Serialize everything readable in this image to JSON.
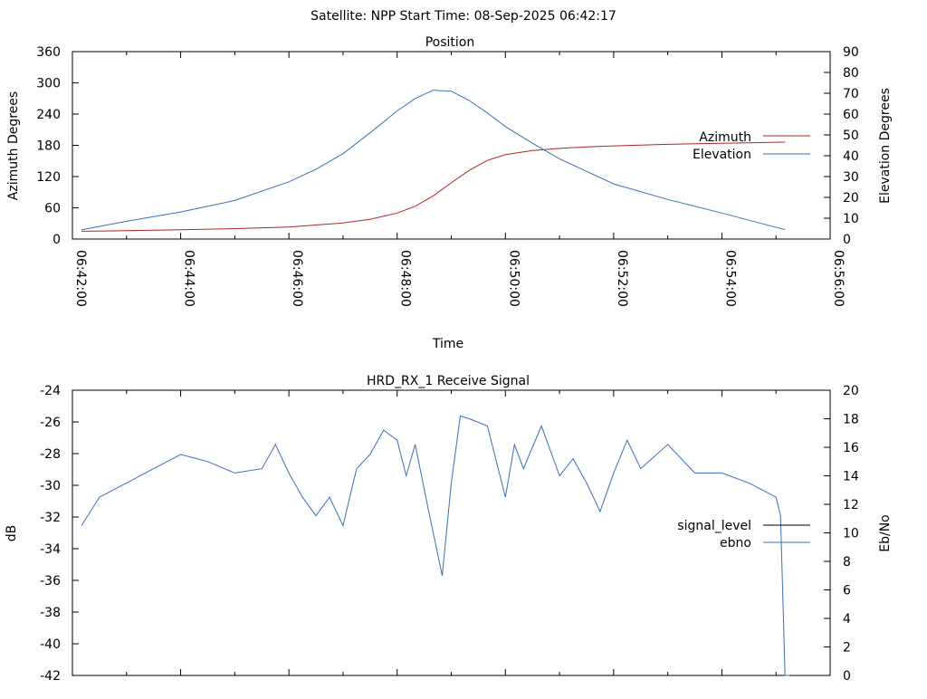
{
  "header": {
    "title": "Satellite: NPP    Start Time: 08-Sep-2025 06:42:17"
  },
  "chart_data": [
    {
      "type": "line",
      "title": "Position",
      "xlabel": "Time",
      "ylabel": "Azimuth Degrees",
      "y2label": "Elevation Degrees",
      "xlim": [
        "06:42:00",
        "06:56:00"
      ],
      "ylim": [
        0,
        360
      ],
      "y2lim": [
        0,
        90
      ],
      "grid": false,
      "legend": "right",
      "x_ticks": [
        "06:42:00",
        "06:44:00",
        "06:46:00",
        "06:48:00",
        "06:50:00",
        "06:52:00",
        "06:54:00",
        "06:56:00"
      ],
      "y_ticks": [
        "0",
        "60",
        "120",
        "180",
        "240",
        "300",
        "360"
      ],
      "y2_ticks": [
        "0",
        "10",
        "20",
        "30",
        "40",
        "50",
        "60",
        "70",
        "80",
        "90"
      ],
      "series": [
        {
          "name": "Azimuth",
          "axis": "y",
          "color": "#b22222",
          "x": [
            "06:42:10",
            "06:43:00",
            "06:44:00",
            "06:45:00",
            "06:46:00",
            "06:46:30",
            "06:47:00",
            "06:47:30",
            "06:48:00",
            "06:48:20",
            "06:48:40",
            "06:49:00",
            "06:49:20",
            "06:49:40",
            "06:50:00",
            "06:50:30",
            "06:51:00",
            "06:51:30",
            "06:52:00",
            "06:53:00",
            "06:54:00",
            "06:55:10"
          ],
          "values": [
            15,
            16,
            18,
            20,
            23,
            27,
            31,
            38,
            50,
            63,
            83,
            108,
            132,
            151,
            162,
            170,
            174,
            177,
            179,
            182,
            184,
            186
          ]
        },
        {
          "name": "Elevation",
          "axis": "y2",
          "color": "#3a6fb7",
          "x": [
            "06:42:10",
            "06:43:00",
            "06:44:00",
            "06:45:00",
            "06:46:00",
            "06:46:30",
            "06:47:00",
            "06:47:30",
            "06:48:00",
            "06:48:20",
            "06:48:40",
            "06:49:00",
            "06:49:20",
            "06:49:40",
            "06:50:00",
            "06:50:30",
            "06:51:00",
            "06:51:30",
            "06:52:00",
            "06:53:00",
            "06:54:00",
            "06:55:10"
          ],
          "values": [
            4.5,
            8.5,
            13,
            18.5,
            27.5,
            33.5,
            41,
            51,
            61.5,
            67.5,
            71.5,
            71,
            66.5,
            60.5,
            54,
            46,
            38.5,
            32.5,
            26.5,
            19,
            12.5,
            4.5
          ]
        }
      ]
    },
    {
      "type": "line",
      "title": "HRD_RX_1 Receive Signal",
      "xlabel": "",
      "ylabel": "dB",
      "y2label": "Eb/No",
      "xlim": [
        "06:42:00",
        "06:56:00"
      ],
      "ylim": [
        -42,
        -24
      ],
      "y2lim": [
        0,
        20
      ],
      "grid": false,
      "legend": "right",
      "y_ticks": [
        "-42",
        "-40",
        "-38",
        "-36",
        "-34",
        "-32",
        "-30",
        "-28",
        "-26",
        "-24"
      ],
      "y2_ticks": [
        "0",
        "2",
        "4",
        "6",
        "8",
        "10",
        "12",
        "14",
        "16",
        "18",
        "20"
      ],
      "series": [
        {
          "name": "signal_level",
          "axis": "y",
          "color": "#000000",
          "x": [],
          "values": []
        },
        {
          "name": "ebno",
          "axis": "y2",
          "color": "#3a6fb7",
          "x": [
            "06:42:10",
            "06:42:30",
            "06:43:00",
            "06:43:30",
            "06:44:00",
            "06:44:30",
            "06:45:00",
            "06:45:30",
            "06:45:45",
            "06:46:00",
            "06:46:15",
            "06:46:30",
            "06:46:45",
            "06:47:00",
            "06:47:15",
            "06:47:30",
            "06:47:45",
            "06:48:00",
            "06:48:10",
            "06:48:20",
            "06:48:35",
            "06:48:50",
            "06:49:00",
            "06:49:10",
            "06:49:20",
            "06:49:40",
            "06:50:00",
            "06:50:10",
            "06:50:20",
            "06:50:40",
            "06:51:00",
            "06:51:15",
            "06:51:30",
            "06:51:45",
            "06:52:00",
            "06:52:15",
            "06:52:30",
            "06:53:00",
            "06:53:30",
            "06:54:00",
            "06:54:30",
            "06:55:00",
            "06:55:05",
            "06:55:10",
            "06:55:15"
          ],
          "values": [
            10.5,
            12.5,
            13.5,
            14.5,
            15.5,
            15,
            14.2,
            14.5,
            16.2,
            14.2,
            12.5,
            11.2,
            12.5,
            10.5,
            14.5,
            15.5,
            17.2,
            16.5,
            14,
            16.2,
            11.5,
            7,
            13.5,
            18.2,
            18,
            17.5,
            12.5,
            16.2,
            14.5,
            17.5,
            14,
            15.2,
            13.5,
            11.5,
            14.2,
            16.5,
            14.5,
            16.2,
            14.2,
            14.2,
            13.5,
            12.5,
            11.2,
            0,
            0
          ]
        }
      ]
    }
  ]
}
